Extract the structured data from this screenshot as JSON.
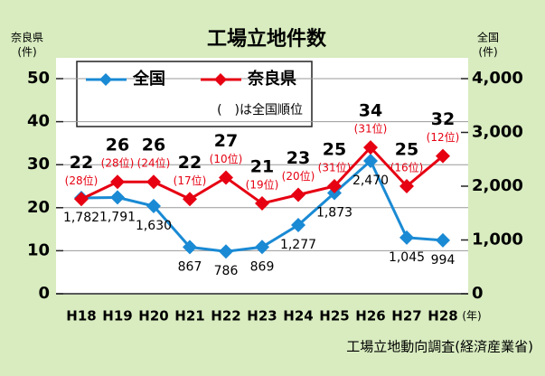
{
  "chart_data": {
    "type": "line",
    "title": "工場立地件数",
    "ylabel": "奈良県",
    "yunit": "(件)",
    "y2label": "全国",
    "y2unit": "(件)",
    "xunit": "(年)",
    "source": "工場立地動向調査(経済産業省)",
    "legend_note": "(　)は全国順位",
    "categories": [
      "H18",
      "H19",
      "H20",
      "H21",
      "H22",
      "H23",
      "H24",
      "H25",
      "H26",
      "H27",
      "H28"
    ],
    "ylim": [
      0,
      50
    ],
    "yticks": [
      0,
      10,
      20,
      30,
      40,
      50
    ],
    "y2lim": [
      0,
      4000
    ],
    "y2ticks": [
      0,
      {
        "value": 1000,
        "label": "1,000"
      },
      {
        "value": 2000,
        "label": "2,000"
      },
      {
        "value": 3000,
        "label": "3,000"
      },
      {
        "value": 4000,
        "label": "4,000"
      }
    ],
    "grid": true,
    "series": [
      {
        "name": "全国",
        "color": "#1a8ad4",
        "axis": "y2",
        "values": [
          1782,
          1791,
          1630,
          867,
          786,
          869,
          1277,
          1873,
          2470,
          1045,
          994
        ],
        "value_labels": [
          "1,782",
          "1,791",
          "1,630",
          "867",
          "786",
          "869",
          "1,277",
          "1,873",
          "2,470",
          "1,045",
          "994"
        ]
      },
      {
        "name": "奈良県",
        "color": "#e60012",
        "values": [
          22,
          26,
          26,
          22,
          27,
          21,
          23,
          25,
          34,
          25,
          32
        ],
        "rank_labels": [
          "(28位)",
          "(28位)",
          "(24位)",
          "(17位)",
          "(10位)",
          "(19位)",
          "(20位)",
          "(31位)",
          "(31位)",
          "(16位)",
          "(12位)"
        ]
      }
    ]
  }
}
